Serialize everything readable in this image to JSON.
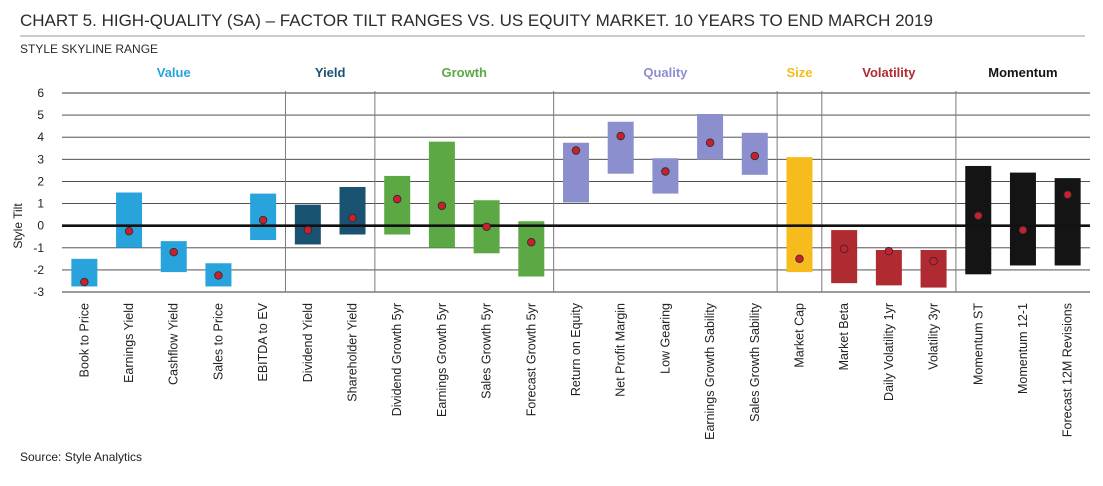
{
  "chart_data": {
    "type": "range-bar",
    "title": "CHART 5. HIGH-QUALITY (SA) – FACTOR TILT RANGES VS. US EQUITY MARKET. 10 YEARS TO END MARCH 2019",
    "subtitle": "STYLE SKYLINE RANGE",
    "ylabel": "Style Tilt",
    "ylim": [
      -3,
      6
    ],
    "yticks": [
      6,
      5,
      4,
      3,
      2,
      1,
      0,
      -1,
      -2,
      -3
    ],
    "source": "Source: Style Analytics",
    "groups": [
      {
        "name": "Value",
        "color": "#29a3dc",
        "label_color": "#29a3dc",
        "items": [
          {
            "label": "Book to Price",
            "low": -2.75,
            "high": -1.5,
            "current": -2.55
          },
          {
            "label": "Earnings Yield",
            "low": -1.0,
            "high": 1.5,
            "current": -0.25
          },
          {
            "label": "Cashflow Yield",
            "low": -2.1,
            "high": -0.7,
            "current": -1.2
          },
          {
            "label": "Sales to Price",
            "low": -2.75,
            "high": -1.7,
            "current": -2.25
          },
          {
            "label": "EBITDA to EV",
            "low": -0.65,
            "high": 1.45,
            "current": 0.25
          }
        ]
      },
      {
        "name": "Yield",
        "color": "#1a5372",
        "label_color": "#1a5372",
        "items": [
          {
            "label": "Dividend Yield",
            "low": -0.85,
            "high": 0.95,
            "current": -0.2
          },
          {
            "label": "Shareholder Yield",
            "low": -0.4,
            "high": 1.75,
            "current": 0.35
          }
        ]
      },
      {
        "name": "Growth",
        "color": "#5ca845",
        "label_color": "#5ca845",
        "items": [
          {
            "label": "Dividend Growth 5yr",
            "low": -0.4,
            "high": 2.25,
            "current": 1.2
          },
          {
            "label": "Earnings Growth 5yr",
            "low": -1.0,
            "high": 3.8,
            "current": 0.9
          },
          {
            "label": "Sales Growth 5yr",
            "low": -1.25,
            "high": 1.15,
            "current": -0.05
          },
          {
            "label": "Forecast Growth 5yr",
            "low": -2.3,
            "high": 0.2,
            "current": -0.75
          }
        ]
      },
      {
        "name": "Quality",
        "color": "#8c8fce",
        "label_color": "#8c8fce",
        "items": [
          {
            "label": "Return on Equity",
            "low": 1.05,
            "high": 3.75,
            "current": 3.4
          },
          {
            "label": "Net Profit Margin",
            "low": 2.35,
            "high": 4.7,
            "current": 4.05
          },
          {
            "label": "Low Gearing",
            "low": 1.45,
            "high": 3.05,
            "current": 2.45
          },
          {
            "label": "Earnings Growth Sability",
            "low": 3.0,
            "high": 5.05,
            "current": 3.75
          },
          {
            "label": "Sales Growth Sability",
            "low": 2.3,
            "high": 4.2,
            "current": 3.15
          }
        ]
      },
      {
        "name": "Size",
        "color": "#f6bb1c",
        "label_color": "#f6bb1c",
        "items": [
          {
            "label": "Market Cap",
            "low": -2.1,
            "high": 3.1,
            "current": -1.5
          }
        ]
      },
      {
        "name": "Volatility",
        "color": "#b02a32",
        "label_color": "#b02a32",
        "items": [
          {
            "label": "Market Beta",
            "low": -2.6,
            "high": -0.2,
            "current": -1.05
          },
          {
            "label": "Daily Volatility 1yr",
            "low": -2.7,
            "high": -1.1,
            "current": -1.15
          },
          {
            "label": "Volatility 3yr",
            "low": -2.8,
            "high": -1.1,
            "current": -1.6
          }
        ]
      },
      {
        "name": "Momentum",
        "color": "#141414",
        "label_color": "#141414",
        "items": [
          {
            "label": "Momentum ST",
            "low": -2.2,
            "high": 2.7,
            "current": 0.45
          },
          {
            "label": "Momentum 12-1",
            "low": -1.8,
            "high": 2.4,
            "current": -0.2
          },
          {
            "label": "Forecast 12M Revisions",
            "low": -1.8,
            "high": 2.15,
            "current": 1.4
          }
        ]
      }
    ],
    "marker_color": "#c8202e",
    "grid": true
  }
}
